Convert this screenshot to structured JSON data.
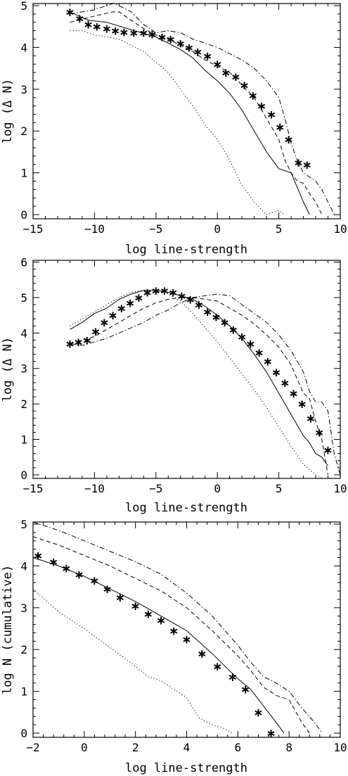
{
  "chart_data": [
    {
      "type": "line",
      "xlabel": "log line-strength",
      "ylabel": "log (Δ N)",
      "xlim": [
        -15,
        10
      ],
      "ylim": [
        -0.1,
        5.05
      ],
      "xticks": [
        -15,
        -10,
        -5,
        0,
        5,
        10
      ],
      "yticks": [
        0,
        1,
        2,
        3,
        4,
        5
      ],
      "grid": false,
      "series": [
        {
          "style": "solid",
          "x": [
            -12,
            -10.5,
            -9,
            -7,
            -5,
            -4,
            -3,
            -2,
            -1,
            0,
            1,
            2,
            3,
            4,
            5,
            6,
            7,
            7.5
          ],
          "y": [
            4.85,
            4.65,
            4.6,
            4.42,
            4.25,
            4.1,
            3.95,
            3.75,
            3.45,
            3.2,
            2.9,
            2.5,
            2.0,
            1.5,
            1.1,
            1.0,
            0.3,
            0.0
          ]
        },
        {
          "style": "dotted",
          "x": [
            -12,
            -11,
            -10,
            -8,
            -7,
            -6,
            -5,
            -4,
            -3,
            -2,
            -1,
            0,
            1,
            2,
            3,
            3.5,
            4,
            4.5,
            5,
            5.5
          ],
          "y": [
            4.4,
            4.4,
            4.3,
            4.2,
            4.05,
            3.9,
            3.65,
            3.4,
            3.0,
            2.6,
            2.15,
            1.8,
            1.3,
            0.7,
            0.3,
            0.15,
            0.0,
            0.05,
            0.1,
            0.0
          ]
        },
        {
          "style": "dashed",
          "x": [
            -12,
            -10,
            -8.5,
            -8,
            -7,
            -6,
            -5,
            -4,
            -3,
            -2,
            -1,
            0,
            1,
            2,
            3,
            4,
            5,
            5.5,
            6,
            6.5,
            7,
            7.5,
            8,
            8.5
          ],
          "y": [
            4.6,
            4.75,
            4.85,
            4.85,
            4.65,
            4.45,
            4.3,
            4.2,
            4.05,
            3.9,
            3.7,
            3.55,
            3.4,
            3.1,
            2.8,
            2.3,
            1.8,
            1.3,
            1.0,
            0.8,
            0.75,
            0.5,
            0.3,
            0.0
          ]
        },
        {
          "style": "dashdot",
          "x": [
            -12,
            -10,
            -8.5,
            -8,
            -7,
            -6,
            -5,
            -4,
            -3,
            -2,
            -1,
            0,
            1,
            2,
            3,
            4,
            5,
            5.5,
            6,
            6.5,
            7,
            7.5,
            8,
            8.5,
            9,
            9.5
          ],
          "y": [
            4.8,
            4.9,
            5.05,
            5.0,
            4.85,
            4.55,
            4.35,
            4.4,
            4.35,
            4.2,
            4.1,
            4.0,
            3.85,
            3.7,
            3.5,
            3.2,
            2.8,
            2.3,
            1.7,
            1.3,
            1.0,
            0.9,
            0.8,
            0.6,
            0.3,
            0.0
          ]
        },
        {
          "style": "asterisk",
          "x": [
            -12,
            -11.2,
            -10.5,
            -9.8,
            -9,
            -8.3,
            -7.6,
            -6.8,
            -6,
            -5.3,
            -4.5,
            -3.8,
            -3,
            -2.3,
            -1.6,
            -0.8,
            0,
            0.7,
            1.5,
            2.2,
            2.9,
            3.6,
            4.4,
            5.1,
            5.8,
            6.6,
            7.3
          ],
          "y": [
            4.85,
            4.7,
            4.55,
            4.5,
            4.45,
            4.4,
            4.37,
            4.35,
            4.35,
            4.32,
            4.25,
            4.2,
            4.1,
            4.0,
            3.9,
            3.8,
            3.6,
            3.4,
            3.3,
            3.1,
            2.85,
            2.6,
            2.4,
            2.1,
            1.8,
            1.25,
            1.2
          ]
        }
      ]
    },
    {
      "type": "line",
      "xlabel": "log line-strength",
      "ylabel": "log (Δ N)",
      "xlim": [
        -15,
        10
      ],
      "ylim": [
        -0.1,
        6.05
      ],
      "xticks": [
        -15,
        -10,
        -5,
        0,
        5,
        10
      ],
      "yticks": [
        0,
        1,
        2,
        3,
        4,
        5,
        6
      ],
      "grid": false,
      "series": [
        {
          "style": "solid",
          "x": [
            -12,
            -11,
            -10,
            -9,
            -8,
            -7,
            -6,
            -5,
            -4,
            -3,
            -2,
            -1,
            0,
            1,
            2,
            3,
            4,
            5,
            6,
            7,
            7.5,
            8,
            8.5,
            9
          ],
          "y": [
            4.1,
            4.3,
            4.55,
            4.7,
            4.95,
            5.1,
            5.2,
            5.2,
            5.15,
            5.05,
            4.95,
            4.75,
            4.5,
            4.2,
            3.85,
            3.4,
            2.9,
            2.3,
            1.7,
            1.1,
            0.9,
            0.6,
            0.5,
            0.25
          ]
        },
        {
          "style": "dotted",
          "x": [
            -12,
            -11,
            -10,
            -9,
            -8,
            -7,
            -6,
            -5,
            -4,
            -3,
            -2,
            -1,
            0,
            1,
            2,
            3,
            4,
            5,
            6,
            7,
            8,
            8.5
          ],
          "y": [
            4.2,
            4.4,
            4.6,
            4.8,
            5.0,
            5.15,
            5.2,
            5.2,
            5.1,
            4.9,
            4.55,
            4.15,
            3.75,
            3.3,
            2.85,
            2.4,
            1.9,
            1.35,
            0.8,
            0.3,
            0.0,
            -0.1
          ]
        },
        {
          "style": "dashed",
          "x": [
            -12,
            -11,
            -10,
            -9,
            -8,
            -7,
            -6,
            -5,
            -4,
            -3,
            -2,
            -1,
            0,
            1,
            2,
            3,
            4,
            5,
            6,
            6.5,
            7,
            7.5,
            8,
            8.5,
            9
          ],
          "y": [
            3.7,
            3.8,
            3.9,
            4.1,
            4.3,
            4.5,
            4.7,
            4.85,
            4.95,
            5.0,
            5.0,
            4.95,
            4.9,
            4.7,
            4.5,
            4.25,
            3.95,
            3.6,
            3.1,
            2.7,
            2.3,
            2.15,
            1.5,
            1.0,
            0.0
          ]
        },
        {
          "style": "dashdot",
          "x": [
            -12,
            -11,
            -10,
            -9,
            -8,
            -7,
            -6,
            -5,
            -4,
            -3,
            -2,
            -1,
            0,
            1,
            2,
            3,
            4,
            5,
            6,
            7,
            7.5,
            8,
            8.5,
            9,
            9.5,
            10
          ],
          "y": [
            3.7,
            3.65,
            3.75,
            3.85,
            4.0,
            4.15,
            4.3,
            4.5,
            4.65,
            4.85,
            5.0,
            5.05,
            5.1,
            5.05,
            4.8,
            4.55,
            4.3,
            3.95,
            3.5,
            2.9,
            2.35,
            2.05,
            2.05,
            1.8,
            0.6,
            0.0
          ]
        },
        {
          "style": "asterisk",
          "x": [
            -12,
            -11.3,
            -10.6,
            -9.9,
            -9.2,
            -8.5,
            -7.8,
            -7.1,
            -6.4,
            -5.7,
            -5,
            -4.3,
            -3.6,
            -2.9,
            -2.2,
            -1.5,
            -0.8,
            -0.1,
            0.6,
            1.3,
            2,
            2.7,
            3.4,
            4.1,
            4.8,
            5.5,
            6.2,
            6.9,
            7.6,
            8.3,
            9
          ],
          "y": [
            3.7,
            3.75,
            3.8,
            4.05,
            4.3,
            4.5,
            4.7,
            4.85,
            5.0,
            5.15,
            5.2,
            5.2,
            5.15,
            5.05,
            4.95,
            4.8,
            4.6,
            4.45,
            4.3,
            4.1,
            3.9,
            3.7,
            3.45,
            3.2,
            2.9,
            2.6,
            2.3,
            2.0,
            1.6,
            1.2,
            0.7
          ]
        }
      ]
    },
    {
      "type": "line",
      "xlabel": "log line-strength",
      "ylabel": "log N (cumulative)",
      "xlim": [
        -2,
        10
      ],
      "ylim": [
        -0.1,
        5.05
      ],
      "xticks": [
        -2,
        0,
        2,
        4,
        6,
        8,
        10
      ],
      "yticks": [
        0,
        1,
        2,
        3,
        4,
        5
      ],
      "grid": false,
      "series": [
        {
          "style": "solid",
          "x": [
            -2,
            -1,
            0,
            1,
            2,
            3,
            4,
            5,
            6,
            6.5,
            7,
            7.5,
            7.8
          ],
          "y": [
            4.2,
            4.0,
            3.75,
            3.45,
            3.15,
            2.8,
            2.45,
            1.9,
            1.3,
            1.05,
            0.65,
            0.25,
            0.0
          ]
        },
        {
          "style": "dotted",
          "x": [
            -2,
            -1,
            0,
            1,
            2,
            2.5,
            3,
            4,
            4.5,
            5,
            5.5,
            5.8
          ],
          "y": [
            3.45,
            2.9,
            2.5,
            2.05,
            1.6,
            1.35,
            1.25,
            0.85,
            0.35,
            0.2,
            0.1,
            0.0
          ]
        },
        {
          "style": "dashed",
          "x": [
            -2,
            -1,
            0,
            1,
            2,
            3,
            4,
            5,
            6,
            6.5,
            7,
            7.5,
            8,
            8.5,
            8.8
          ],
          "y": [
            4.7,
            4.5,
            4.25,
            4.0,
            3.7,
            3.4,
            3.0,
            2.45,
            1.85,
            1.5,
            1.1,
            0.9,
            0.8,
            0.25,
            0.0
          ]
        },
        {
          "style": "dashdot",
          "x": [
            -2,
            -1,
            0,
            1,
            2,
            3,
            4,
            5,
            6,
            6.5,
            7,
            7.5,
            8,
            8.5,
            9,
            9.3
          ],
          "y": [
            5.05,
            4.85,
            4.6,
            4.35,
            4.1,
            3.8,
            3.35,
            2.8,
            2.1,
            1.7,
            1.35,
            1.2,
            1.0,
            0.6,
            0.25,
            0.0
          ]
        },
        {
          "style": "asterisk",
          "x": [
            -1.8,
            -1.2,
            -0.7,
            -0.2,
            0.4,
            0.9,
            1.4,
            2,
            2.5,
            3,
            3.5,
            4,
            4.6,
            5.2,
            5.8,
            6.3,
            6.8,
            7.3
          ],
          "y": [
            4.25,
            4.1,
            3.95,
            3.8,
            3.65,
            3.45,
            3.25,
            3.05,
            2.85,
            2.7,
            2.45,
            2.25,
            1.9,
            1.6,
            1.35,
            1.05,
            0.5,
            0.0
          ]
        }
      ]
    }
  ]
}
